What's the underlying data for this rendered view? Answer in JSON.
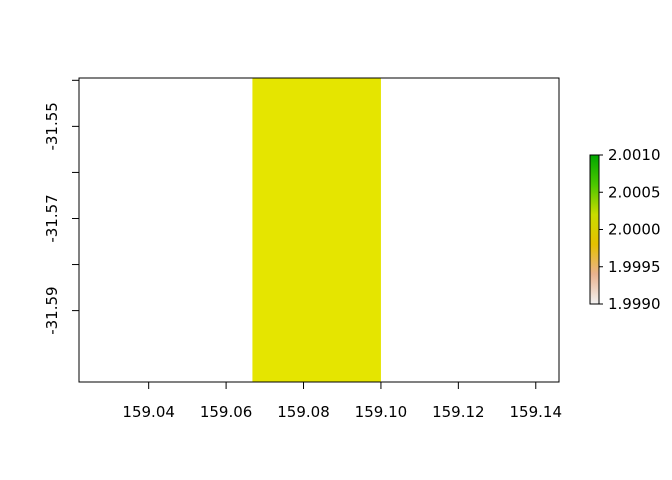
{
  "chart_data": {
    "type": "heatmap",
    "title": "",
    "xlabel": "",
    "ylabel": "",
    "xlim": [
      159.022,
      159.146
    ],
    "ylim": [
      -31.6055,
      -31.5395
    ],
    "x_ticks": [
      159.04,
      159.06,
      159.08,
      159.1,
      159.12,
      159.14
    ],
    "x_tick_labels": [
      "159.04",
      "159.06",
      "159.08",
      "159.10",
      "159.12",
      "159.14"
    ],
    "y_ticks": [
      -31.59,
      -31.58,
      -31.57,
      -31.56,
      -31.55,
      -31.54
    ],
    "y_tick_labels": [
      "-31.59",
      "",
      "-31.57",
      "",
      "-31.55",
      ""
    ],
    "cells": [
      {
        "x0": 159.0668,
        "x1": 159.1,
        "y0": -31.6055,
        "y1": -31.5395,
        "value": 2.0,
        "color": "#E5E500"
      }
    ],
    "legend": {
      "placement": "right",
      "range": [
        1.999,
        2.001
      ],
      "ticks": [
        1.999,
        1.9995,
        2.0,
        2.0005,
        2.001
      ],
      "tick_labels": [
        "1.9990",
        "1.9995",
        "2.0000",
        "2.0005",
        "2.0010"
      ],
      "colors_bottom_to_top": [
        "#F2F2F2",
        "#EAB28F",
        "#E5C000",
        "#C9DC00",
        "#4CC800",
        "#00A600"
      ]
    },
    "grid": false
  }
}
